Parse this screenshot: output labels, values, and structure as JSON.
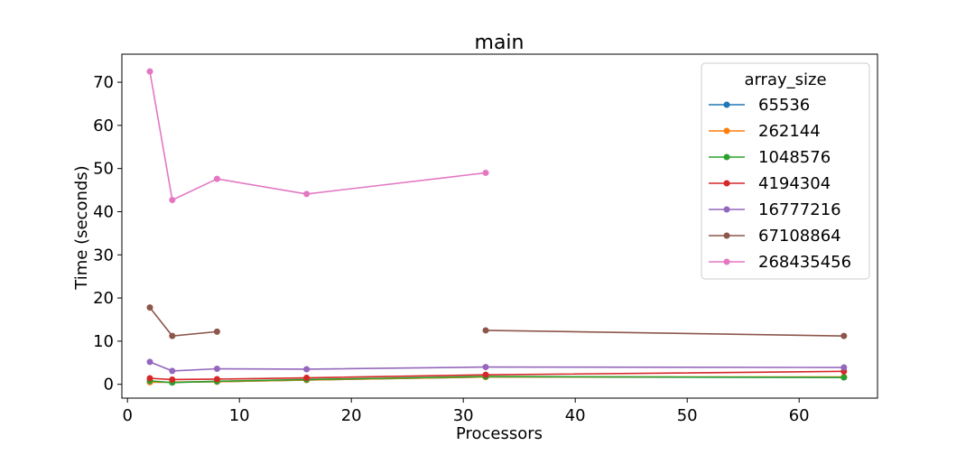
{
  "chart_data": {
    "type": "line",
    "title": "main",
    "xlabel": "Processors",
    "ylabel": "Time (seconds)",
    "xlim": [
      -0.5,
      67
    ],
    "ylim": [
      -3.2,
      76.5
    ],
    "x_ticks": [
      0,
      10,
      20,
      30,
      40,
      50,
      60
    ],
    "y_ticks": [
      0,
      10,
      20,
      30,
      40,
      50,
      60,
      70
    ],
    "grid": false,
    "legend_title": "array_size",
    "legend_position": "top-right",
    "series": [
      {
        "name": "65536",
        "color": "#1f77b4",
        "points": [
          [
            2,
            0.5
          ],
          [
            4,
            0.5
          ],
          [
            8,
            0.6
          ],
          [
            16,
            1.0
          ],
          [
            32,
            1.7
          ],
          [
            64,
            1.6
          ]
        ]
      },
      {
        "name": "262144",
        "color": "#ff7f0e",
        "points": [
          [
            2,
            0.5
          ],
          [
            4,
            0.5
          ],
          [
            8,
            0.6
          ],
          [
            16,
            1.0
          ],
          [
            32,
            1.7
          ],
          [
            64,
            1.7
          ]
        ]
      },
      {
        "name": "1048576",
        "color": "#2ca02c",
        "points": [
          [
            2,
            0.8
          ],
          [
            4,
            0.4
          ],
          [
            8,
            0.7
          ],
          [
            16,
            1.1
          ],
          [
            32,
            1.8
          ],
          [
            64,
            1.6
          ]
        ]
      },
      {
        "name": "4194304",
        "color": "#d62728",
        "points": [
          [
            2,
            1.4
          ],
          [
            4,
            1.1
          ],
          [
            8,
            1.2
          ],
          [
            16,
            1.5
          ],
          [
            32,
            2.2
          ],
          [
            64,
            3.0
          ]
        ]
      },
      {
        "name": "16777216",
        "color": "#9467bd",
        "points": [
          [
            2,
            5.2
          ],
          [
            4,
            3.1
          ],
          [
            8,
            3.6
          ],
          [
            16,
            3.5
          ],
          [
            32,
            4.0
          ],
          [
            64,
            3.9
          ]
        ]
      },
      {
        "name": "67108864",
        "color": "#8c564b",
        "points": [
          [
            2,
            17.8
          ],
          [
            4,
            11.2
          ],
          [
            8,
            12.2
          ],
          [
            16,
            null
          ],
          [
            32,
            12.5
          ],
          [
            64,
            11.2
          ]
        ]
      },
      {
        "name": "268435456",
        "color": "#e377c2",
        "points": [
          [
            2,
            72.5
          ],
          [
            4,
            42.7
          ],
          [
            8,
            47.6
          ],
          [
            16,
            44.1
          ],
          [
            32,
            49.0
          ],
          [
            64,
            null
          ]
        ]
      }
    ]
  }
}
